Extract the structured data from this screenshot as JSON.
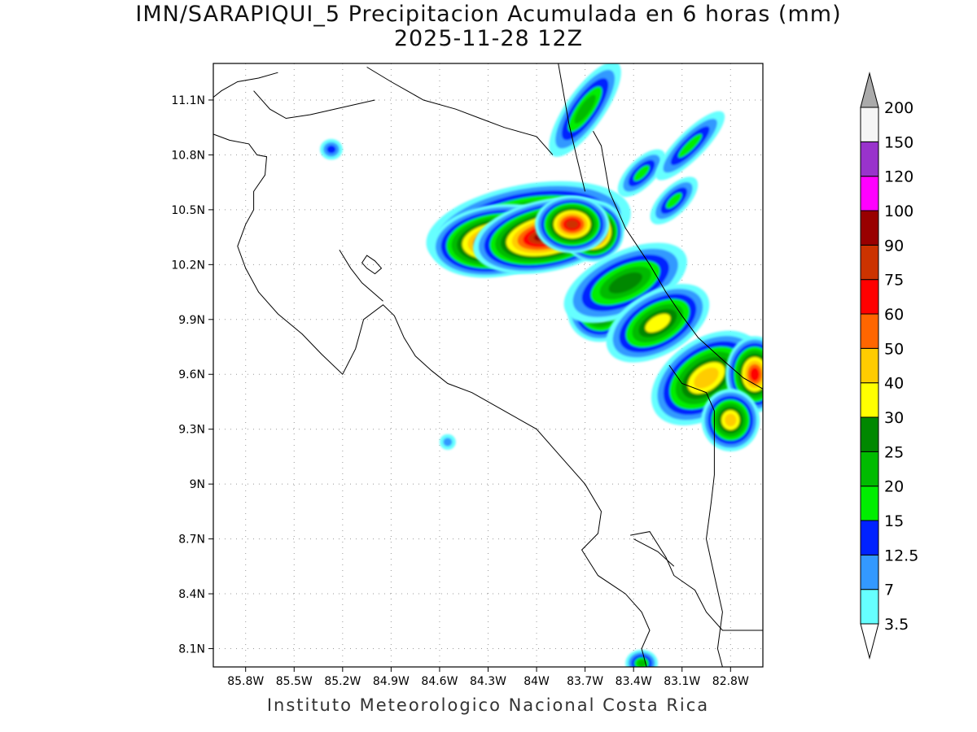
{
  "title": "IMN/SARAPIQUI_5 Precipitacion Acumulada en 6 horas (mm)",
  "subtitle": "2025-11-28 12Z",
  "footer": "Instituto Meteorologico Nacional Costa Rica",
  "map": {
    "lon_range": [
      -86.0,
      -82.6
    ],
    "lat_range": [
      8.0,
      11.3
    ],
    "lon_ticks": [
      {
        "value": -85.8,
        "label": "85.8W"
      },
      {
        "value": -85.5,
        "label": "85.5W"
      },
      {
        "value": -85.2,
        "label": "85.2W"
      },
      {
        "value": -84.9,
        "label": "84.9W"
      },
      {
        "value": -84.6,
        "label": "84.6W"
      },
      {
        "value": -84.3,
        "label": "84.3W"
      },
      {
        "value": -84.0,
        "label": "84W"
      },
      {
        "value": -83.7,
        "label": "83.7W"
      },
      {
        "value": -83.4,
        "label": "83.4W"
      },
      {
        "value": -83.1,
        "label": "83.1W"
      },
      {
        "value": -82.8,
        "label": "82.8W"
      }
    ],
    "lat_ticks": [
      {
        "value": 8.1,
        "label": "8.1N"
      },
      {
        "value": 8.4,
        "label": "8.4N"
      },
      {
        "value": 8.7,
        "label": "8.7N"
      },
      {
        "value": 9.0,
        "label": "9N"
      },
      {
        "value": 9.3,
        "label": "9.3N"
      },
      {
        "value": 9.6,
        "label": "9.6N"
      },
      {
        "value": 9.9,
        "label": "9.9N"
      },
      {
        "value": 10.2,
        "label": "10.2N"
      },
      {
        "value": 10.5,
        "label": "10.5N"
      },
      {
        "value": 10.8,
        "label": "10.8N"
      },
      {
        "value": 11.1,
        "label": "11.1N"
      }
    ],
    "grid": true,
    "coast_lines": [
      [
        [
          -86.05,
          10.93
        ],
        [
          -85.9,
          10.88
        ],
        [
          -85.78,
          10.86
        ],
        [
          -85.73,
          10.8
        ],
        [
          -85.67,
          10.79
        ],
        [
          -85.68,
          10.69
        ],
        [
          -85.75,
          10.6
        ],
        [
          -85.75,
          10.5
        ],
        [
          -85.8,
          10.42
        ],
        [
          -85.85,
          10.3
        ],
        [
          -85.8,
          10.18
        ],
        [
          -85.72,
          10.05
        ],
        [
          -85.6,
          9.93
        ],
        [
          -85.45,
          9.82
        ],
        [
          -85.33,
          9.71
        ],
        [
          -85.2,
          9.6
        ],
        [
          -85.12,
          9.74
        ],
        [
          -85.07,
          9.9
        ],
        [
          -84.95,
          9.98
        ],
        [
          -84.88,
          9.92
        ],
        [
          -84.82,
          9.8
        ],
        [
          -84.75,
          9.7
        ],
        [
          -84.65,
          9.62
        ],
        [
          -84.55,
          9.55
        ],
        [
          -84.4,
          9.5
        ],
        [
          -84.2,
          9.4
        ],
        [
          -84.0,
          9.3
        ],
        [
          -83.85,
          9.15
        ],
        [
          -83.7,
          9.0
        ],
        [
          -83.6,
          8.85
        ],
        [
          -83.62,
          8.73
        ],
        [
          -83.72,
          8.64
        ],
        [
          -83.62,
          8.5
        ],
        [
          -83.45,
          8.4
        ],
        [
          -83.35,
          8.3
        ],
        [
          -83.3,
          8.2
        ],
        [
          -83.35,
          8.1
        ],
        [
          -83.32,
          8.0
        ]
      ],
      [
        [
          -85.22,
          10.28
        ],
        [
          -85.15,
          10.18
        ],
        [
          -85.08,
          10.1
        ],
        [
          -84.95,
          10.0
        ]
      ],
      [
        [
          -83.42,
          8.72
        ],
        [
          -83.3,
          8.74
        ],
        [
          -83.2,
          8.6
        ],
        [
          -83.15,
          8.5
        ],
        [
          -83.02,
          8.42
        ],
        [
          -82.95,
          8.3
        ],
        [
          -82.85,
          8.2
        ],
        [
          -82.75,
          8.2
        ],
        [
          -82.6,
          8.2
        ]
      ],
      [
        [
          -83.4,
          8.7
        ],
        [
          -83.25,
          8.63
        ],
        [
          -83.15,
          8.55
        ]
      ],
      [
        [
          -83.65,
          10.93
        ],
        [
          -83.6,
          10.85
        ],
        [
          -83.55,
          10.6
        ],
        [
          -83.45,
          10.4
        ],
        [
          -83.3,
          10.2
        ],
        [
          -83.2,
          10.05
        ],
        [
          -83.1,
          9.92
        ],
        [
          -83.0,
          9.8
        ],
        [
          -82.85,
          9.68
        ],
        [
          -82.72,
          9.58
        ],
        [
          -82.6,
          9.52
        ]
      ],
      [
        [
          -86.05,
          11.08
        ],
        [
          -85.95,
          11.15
        ],
        [
          -85.85,
          11.2
        ],
        [
          -85.72,
          11.22
        ],
        [
          -85.6,
          11.25
        ]
      ],
      [
        [
          -85.05,
          11.28
        ],
        [
          -84.9,
          11.2
        ],
        [
          -84.8,
          11.15
        ],
        [
          -84.7,
          11.1
        ],
        [
          -84.5,
          11.05
        ],
        [
          -84.35,
          11.0
        ],
        [
          -84.2,
          10.95
        ],
        [
          -84.0,
          10.9
        ],
        [
          -83.9,
          10.8
        ]
      ],
      [
        [
          -83.87,
          11.32
        ],
        [
          -83.8,
          10.97
        ],
        [
          -83.75,
          10.78
        ],
        [
          -83.7,
          10.6
        ]
      ]
    ],
    "border_lines": [
      [
        [
          -85.75,
          11.15
        ],
        [
          -85.65,
          11.05
        ],
        [
          -85.55,
          11.0
        ],
        [
          -85.4,
          11.02
        ],
        [
          -85.2,
          11.06
        ],
        [
          -85.0,
          11.1
        ]
      ],
      [
        [
          -83.18,
          9.65
        ],
        [
          -83.1,
          9.55
        ],
        [
          -82.95,
          9.5
        ],
        [
          -82.9,
          9.4
        ],
        [
          -82.9,
          9.2
        ],
        [
          -82.9,
          9.05
        ],
        [
          -82.92,
          8.9
        ],
        [
          -82.95,
          8.7
        ],
        [
          -82.9,
          8.5
        ],
        [
          -82.85,
          8.3
        ],
        [
          -82.88,
          8.1
        ],
        [
          -82.85,
          8.0
        ]
      ]
    ],
    "lakes": [
      [
        [
          -85.05,
          10.25
        ],
        [
          -85.0,
          10.22
        ],
        [
          -84.96,
          10.18
        ],
        [
          -85.0,
          10.15
        ],
        [
          -85.05,
          10.18
        ],
        [
          -85.08,
          10.21
        ]
      ]
    ]
  },
  "precipitation_cells": [
    {
      "lon": -84.05,
      "lat": 10.4,
      "rx": 0.55,
      "ry": 0.16,
      "rot": -10,
      "value": 55
    },
    {
      "lon": -84.25,
      "lat": 10.33,
      "rx": 0.3,
      "ry": 0.1,
      "rot": -8,
      "value": 85
    },
    {
      "lon": -83.93,
      "lat": 10.36,
      "rx": 0.35,
      "ry": 0.09,
      "rot": -12,
      "value": 90
    },
    {
      "lon": -83.65,
      "lat": 10.38,
      "rx": 0.05,
      "ry": 0.04,
      "rot": 0,
      "value": 140
    },
    {
      "lon": -83.78,
      "lat": 10.42,
      "rx": 0.12,
      "ry": 0.06,
      "rot": 0,
      "value": 80
    },
    {
      "lon": -83.6,
      "lat": 9.95,
      "rx": 0.13,
      "ry": 0.1,
      "rot": -20,
      "value": 45
    },
    {
      "lon": -83.45,
      "lat": 10.1,
      "rx": 0.35,
      "ry": 0.12,
      "rot": -25,
      "value": 28
    },
    {
      "lon": -83.25,
      "lat": 9.88,
      "rx": 0.28,
      "ry": 0.11,
      "rot": -30,
      "value": 35
    },
    {
      "lon": -82.95,
      "lat": 9.58,
      "rx": 0.3,
      "ry": 0.14,
      "rot": -35,
      "value": 42
    },
    {
      "lon": -82.65,
      "lat": 9.6,
      "rx": 0.08,
      "ry": 0.12,
      "rot": 0,
      "value": 65
    },
    {
      "lon": -82.8,
      "lat": 9.35,
      "rx": 0.1,
      "ry": 0.1,
      "rot": 0,
      "value": 45
    },
    {
      "lon": -83.7,
      "lat": 11.05,
      "rx": 0.3,
      "ry": 0.06,
      "rot": -55,
      "value": 22
    },
    {
      "lon": -83.35,
      "lat": 10.7,
      "rx": 0.15,
      "ry": 0.04,
      "rot": -45,
      "value": 18
    },
    {
      "lon": -83.05,
      "lat": 10.85,
      "rx": 0.25,
      "ry": 0.04,
      "rot": -45,
      "value": 16
    },
    {
      "lon": -83.15,
      "lat": 10.55,
      "rx": 0.15,
      "ry": 0.04,
      "rot": -45,
      "value": 18
    },
    {
      "lon": -85.27,
      "lat": 10.83,
      "rx": 0.04,
      "ry": 0.03,
      "rot": 0,
      "value": 14
    },
    {
      "lon": -84.55,
      "lat": 9.23,
      "rx": 0.03,
      "ry": 0.025,
      "rot": 0,
      "value": 10
    },
    {
      "lon": -83.35,
      "lat": 8.02,
      "rx": 0.05,
      "ry": 0.03,
      "rot": 0,
      "value": 22
    }
  ],
  "colorbar": {
    "labels": [
      "3.5",
      "7",
      "12.5",
      "15",
      "20",
      "25",
      "30",
      "40",
      "50",
      "60",
      "75",
      "90",
      "100",
      "120",
      "150",
      "200"
    ],
    "colors": [
      "#66ffff",
      "#3399ff",
      "#0022ff",
      "#00ee00",
      "#00bb00",
      "#008800",
      "#ffff00",
      "#ffcc00",
      "#ff6600",
      "#ff0000",
      "#cc3300",
      "#990000",
      "#ff00ff",
      "#9933cc",
      "#f5f5f5"
    ],
    "over_color": "#aaaaaa",
    "under_color": "#ffffff"
  }
}
